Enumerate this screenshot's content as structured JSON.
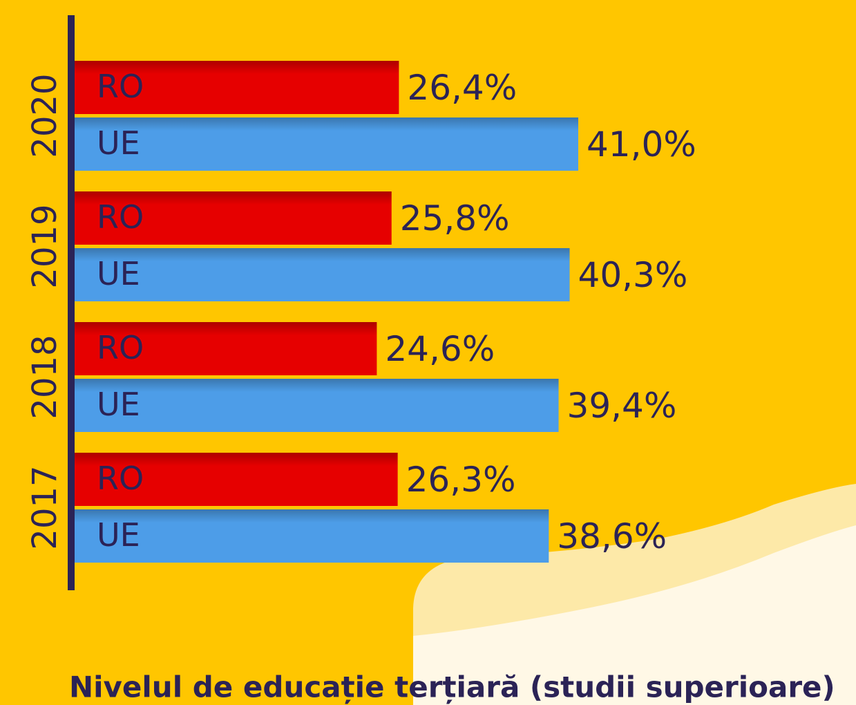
{
  "chart_data": {
    "type": "bar",
    "orientation": "horizontal",
    "title": "Nivelul de educație terțiară (studii superioare)",
    "categories": [
      "2020",
      "2019",
      "2018",
      "2017"
    ],
    "series": [
      {
        "name": "RO",
        "color": "#e60000",
        "values": [
          26.4,
          25.8,
          24.6,
          26.3
        ],
        "value_labels": [
          "26,4%",
          "25,8%",
          "24,6%",
          "26,3%"
        ]
      },
      {
        "name": "UE",
        "color": "#4d9de8",
        "values": [
          41.0,
          40.3,
          39.4,
          38.6
        ],
        "value_labels": [
          "41,0%",
          "40,3%",
          "39,4%",
          "38,6%"
        ]
      }
    ]
  }
}
